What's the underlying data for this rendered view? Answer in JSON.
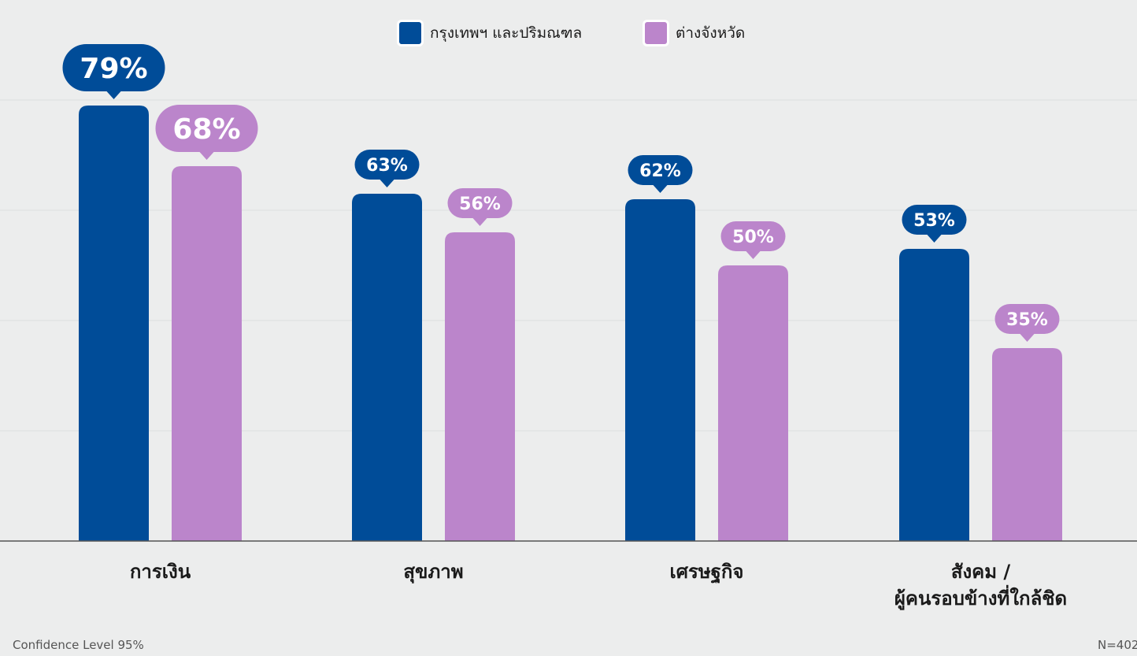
{
  "chart_data": {
    "type": "bar",
    "categories": [
      "การเงิน",
      "สุขภาพ",
      "เศรษฐกิจ",
      "สังคม /\nผู้คนรอบข้างที่ใกล้ชิด"
    ],
    "series": [
      {
        "name": "กรุงเทพฯ และปริมณฑล",
        "values": [
          79,
          63,
          62,
          53
        ],
        "color": "#004C98"
      },
      {
        "name": "ต่างจังหวัด",
        "values": [
          68,
          56,
          50,
          35
        ],
        "color": "#BB85CB"
      }
    ],
    "value_suffix": "%",
    "ylim": [
      0,
      100
    ],
    "grid": true,
    "legend_position": "top-center"
  },
  "footer": {
    "confidence": "Confidence Level 95%",
    "sample": "N=402"
  }
}
